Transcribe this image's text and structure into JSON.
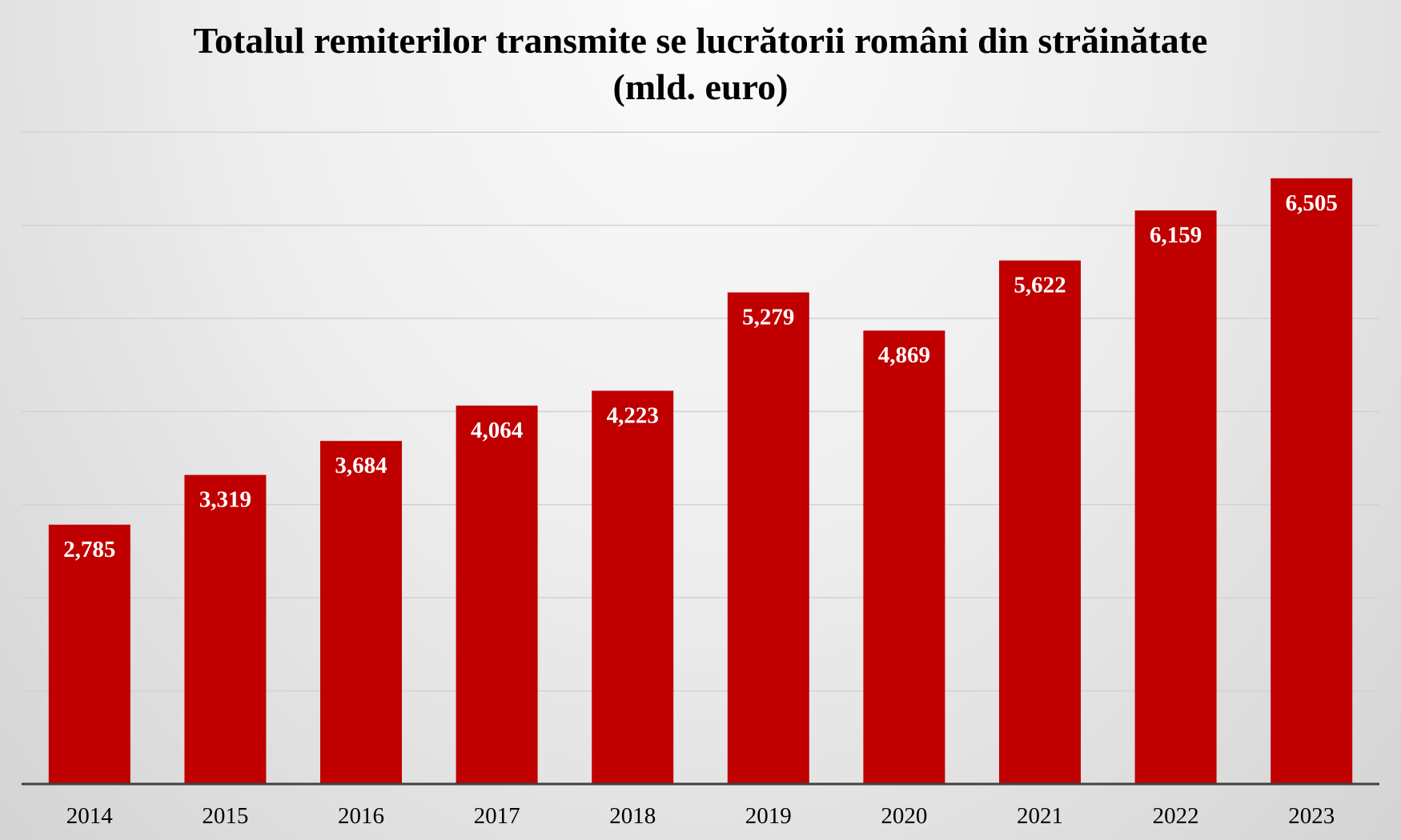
{
  "chart_data": {
    "type": "bar",
    "title_line1": "Totalul remiterilor transmite se lucrătorii  români din străinătate",
    "title_line2": "(mld. euro)",
    "xlabel": "",
    "ylabel": "",
    "categories": [
      "2014",
      "2015",
      "2016",
      "2017",
      "2018",
      "2019",
      "2020",
      "2021",
      "2022",
      "2023"
    ],
    "values": [
      2.785,
      3.319,
      3.684,
      4.064,
      4.223,
      5.279,
      4.869,
      5.622,
      6.159,
      6.505
    ],
    "value_labels": [
      "2,785",
      "3,319",
      "3,684",
      "4,064",
      "4,223",
      "5,279",
      "4,869",
      "5,622",
      "6,159",
      "6,505"
    ],
    "ylim": [
      0,
      7
    ],
    "gridlines": [
      1,
      2,
      3,
      4,
      5,
      6,
      7
    ],
    "grid": true,
    "legend": "none",
    "bar_color": "#c00000",
    "label_color": "#ffffff"
  }
}
